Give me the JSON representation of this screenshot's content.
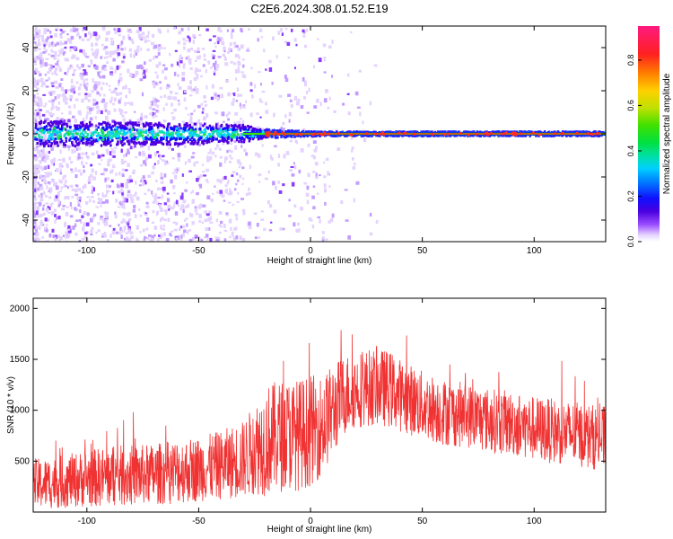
{
  "title": "C2E6.2024.308.01.52.E19",
  "chart_data": [
    {
      "type": "heatmap",
      "xlabel": "Height of straight line (km)",
      "ylabel": "Frequency (Hz)",
      "xlim": [
        -124,
        132
      ],
      "ylim": [
        -50,
        50
      ],
      "xticks": [
        -100,
        -50,
        0,
        50,
        100
      ],
      "yticks": [
        -40,
        -20,
        0,
        20,
        40
      ],
      "colorbar": {
        "label": "Normalized spectral amplitude",
        "range": [
          0.0,
          0.95
        ],
        "ticks": [
          "0.0",
          "0.2",
          "0.4",
          "0.6",
          "0.8"
        ],
        "tick_values": [
          0.0,
          0.2,
          0.4,
          0.6,
          0.8
        ]
      },
      "description_points": {
        "peak_line_frequency_hz": 0,
        "band_halfwidth_hz": [
          [
            -124,
            6
          ],
          [
            -60,
            5
          ],
          [
            -30,
            4
          ],
          [
            -20,
            2
          ],
          [
            0,
            1
          ],
          [
            132,
            1
          ]
        ],
        "noise_extent_x": [
          -124,
          10
        ]
      },
      "grid": false
    },
    {
      "type": "line",
      "xlabel": "Height of straight line (km)",
      "ylabel": "SNR (10 * v/v)",
      "xlim": [
        -124,
        132
      ],
      "ylim": [
        0,
        2100
      ],
      "xticks": [
        -100,
        -50,
        0,
        50,
        100
      ],
      "yticks": [
        500,
        1000,
        1500,
        2000
      ],
      "series": [
        {
          "color": "#f03232",
          "envelope_x": [
            -124,
            -110,
            -100,
            -90,
            -80,
            -70,
            -60,
            -50,
            -40,
            -30,
            -25,
            -20,
            -15,
            -10,
            -5,
            0,
            5,
            10,
            15,
            20,
            25,
            30,
            35,
            40,
            50,
            60,
            70,
            80,
            90,
            100,
            110,
            120,
            132
          ],
          "envelope_mean": [
            270,
            300,
            330,
            350,
            360,
            370,
            400,
            420,
            460,
            520,
            620,
            700,
            740,
            760,
            760,
            800,
            850,
            1000,
            1150,
            1200,
            1220,
            1230,
            1210,
            1150,
            1050,
            980,
            950,
            900,
            870,
            820,
            790,
            760,
            720
          ],
          "envelope_spread": [
            250,
            260,
            280,
            300,
            300,
            300,
            320,
            320,
            340,
            380,
            450,
            550,
            550,
            550,
            550,
            550,
            500,
            450,
            400,
            380,
            380,
            380,
            380,
            360,
            340,
            330,
            320,
            320,
            320,
            320,
            320,
            320,
            320
          ]
        }
      ],
      "grid": false
    }
  ]
}
